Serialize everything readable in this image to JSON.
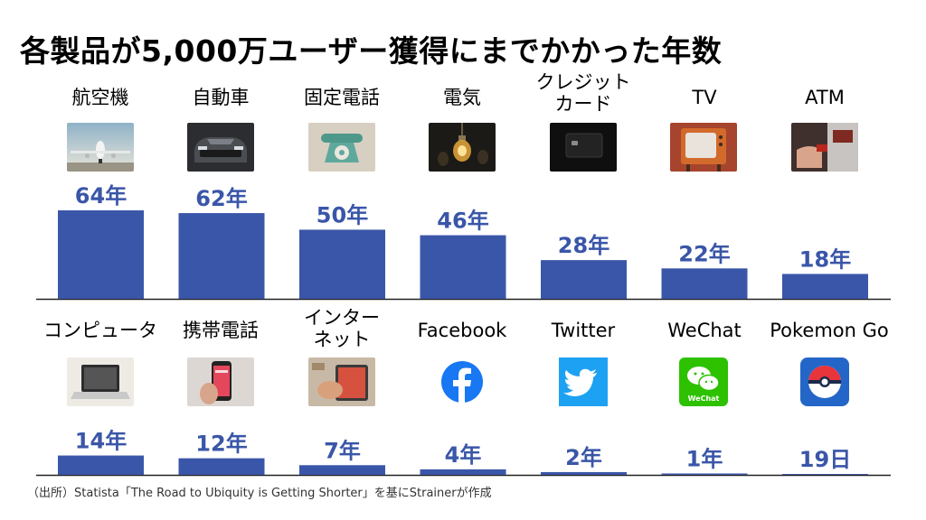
{
  "title": "各製品が5,000万ユーザー獲得にまでかかった年数",
  "source": "（出所）Statista「The Road to Ubiquity is Getting Shorter」を基にStrainerが作成",
  "colors": {
    "bar": "#3a56a8",
    "label": "#3a56a8",
    "baseline": "#222222"
  },
  "chart_data": [
    {
      "type": "bar",
      "title": "",
      "xlabel": "",
      "ylabel": "",
      "unit": "年",
      "categories": [
        "航空機",
        "自動車",
        "固定電話",
        "電気",
        "クレジット\nカード",
        "TV",
        "ATM"
      ],
      "icons": [
        "airplane-icon",
        "car-icon",
        "telephone-icon",
        "lightbulb-icon",
        "credit-card-icon",
        "tv-icon",
        "atm-icon"
      ],
      "values": [
        64,
        62,
        50,
        46,
        28,
        22,
        18
      ],
      "value_labels": [
        "64年",
        "62年",
        "50年",
        "46年",
        "28年",
        "22年",
        "18年"
      ],
      "ylim": [
        0,
        64
      ]
    },
    {
      "type": "bar",
      "title": "",
      "xlabel": "",
      "ylabel": "",
      "unit": "年",
      "categories": [
        "コンピュータ",
        "携帯電話",
        "インター\nネット",
        "Facebook",
        "Twitter",
        "WeChat",
        "Pokemon Go"
      ],
      "icons": [
        "laptop-icon",
        "mobile-phone-icon",
        "internet-icon",
        "facebook-icon",
        "twitter-icon",
        "wechat-icon",
        "pokemon-go-icon"
      ],
      "values": [
        14,
        12,
        7,
        4,
        2,
        1,
        0.05
      ],
      "value_labels": [
        "14年",
        "12年",
        "7年",
        "4年",
        "2年",
        "1年",
        "19日"
      ],
      "ylim": [
        0,
        64
      ]
    }
  ]
}
